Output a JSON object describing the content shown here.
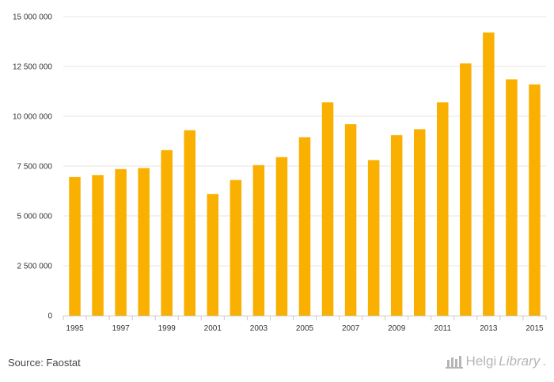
{
  "chart_data": {
    "type": "bar",
    "categories": [
      "1995",
      "1996",
      "1997",
      "1998",
      "1999",
      "2000",
      "2001",
      "2002",
      "2003",
      "2004",
      "2005",
      "2006",
      "2007",
      "2008",
      "2009",
      "2010",
      "2011",
      "2012",
      "2013",
      "2014",
      "2015"
    ],
    "x_tick_labels": [
      "1995",
      "1997",
      "1999",
      "2001",
      "2003",
      "2005",
      "2007",
      "2009",
      "2011",
      "2013",
      "2015"
    ],
    "series": [
      {
        "values": [
          6950000,
          7050000,
          7350000,
          7400000,
          8300000,
          9300000,
          6100000,
          6800000,
          7550000,
          7950000,
          8950000,
          10700000,
          9600000,
          7800000,
          9050000,
          9350000,
          10700000,
          12650000,
          14200000,
          11850000,
          11600000
        ],
        "color": "#f9b000"
      }
    ],
    "y_ticks": [
      0,
      2500000,
      5000000,
      7500000,
      10000000,
      12500000,
      15000000
    ],
    "y_tick_labels": [
      "0",
      "2 500 000",
      "5 000 000",
      "7 500 000",
      "10 000 000",
      "12 500 000",
      "15 000 000"
    ],
    "ylim": [
      0,
      15000000
    ],
    "grid": true,
    "legend": "none"
  },
  "source": "Source: Faostat",
  "brand": {
    "name_part1": "Helgi",
    "name_part2": "Library",
    "suffix": ".",
    "icon": "library-building-icon"
  }
}
